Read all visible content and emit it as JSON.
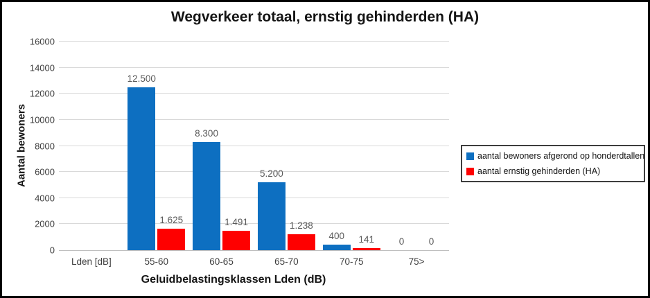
{
  "chart_data": {
    "type": "bar",
    "title": "Wegverkeer totaal, ernstig gehinderden (HA)",
    "xlabel": "Geluidbelastingsklassen Lden (dB)",
    "ylabel": "Aantal bewoners",
    "ylim": [
      0,
      16000
    ],
    "yticks": [
      0,
      2000,
      4000,
      6000,
      8000,
      10000,
      12000,
      14000,
      16000
    ],
    "categories": [
      "Lden [dB]",
      "55-60",
      "60-65",
      "65-70",
      "70-75",
      "75>"
    ],
    "grid": true,
    "legend_position": "right",
    "series": [
      {
        "name": "aantal bewoners afgerond op honderdtallen",
        "color": "#0d6fc1",
        "values": [
          null,
          12500,
          8300,
          5200,
          400,
          0
        ],
        "labels": [
          "",
          "12.500",
          "8.300",
          "5.200",
          "400",
          "0"
        ]
      },
      {
        "name": "aantal ernstig gehinderden (HA)",
        "color": "#fe0000",
        "values": [
          null,
          1625,
          1491,
          1238,
          141,
          0
        ],
        "labels": [
          "",
          "1.625",
          "1.491",
          "1.238",
          "141",
          "0"
        ]
      }
    ]
  },
  "style": {
    "frame_border_color": "#000000",
    "background_color": "#ffffff",
    "gridline_color": "#d9d9d9",
    "axis_line_color": "#bfbfbf",
    "tick_text_color": "#3d3d3d",
    "bar_label_color": "#595959",
    "title_color": "#141414",
    "legend_border_color": "#3d3d3d"
  }
}
